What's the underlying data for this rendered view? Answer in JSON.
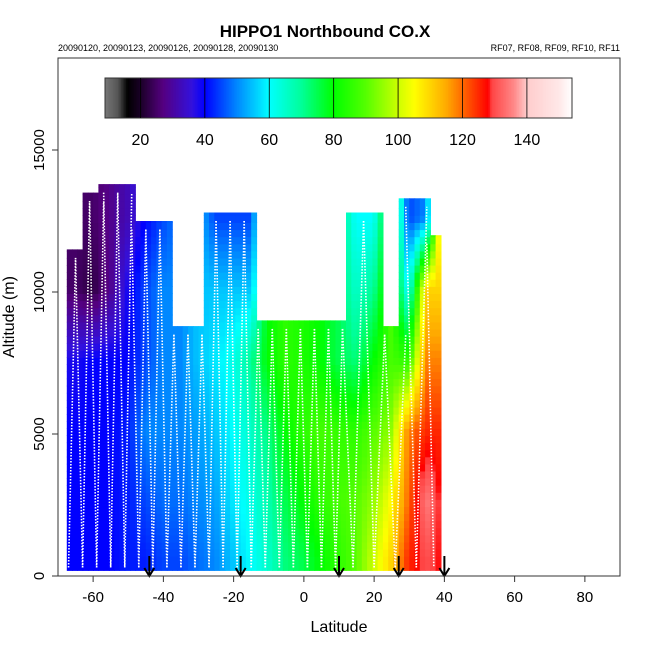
{
  "chart_data": {
    "type": "heatmap",
    "title": "HIPPO1 Northbound CO.X",
    "subtitle_left": "20090120, 20090123, 20090126, 20090128, 20090130",
    "subtitle_right": "RF07, RF08, RF09, RF10, RF11",
    "xlabel": "Latitude",
    "ylabel": "Altitude (m)",
    "xlim": [
      -70,
      90
    ],
    "ylim": [
      0,
      18240
    ],
    "xticks": [
      "-60",
      "-40",
      "-20",
      "0",
      "20",
      "40",
      "60",
      "80"
    ],
    "xtick_values": [
      -60,
      -40,
      -20,
      0,
      20,
      40,
      60,
      80
    ],
    "yticks": [
      "0",
      "5000",
      "10000",
      "15000"
    ],
    "ytick_values": [
      0,
      5000,
      10000,
      15000
    ],
    "colorbar": {
      "range": [
        9,
        154
      ],
      "ticks": [
        "20",
        "40",
        "60",
        "80",
        "100",
        "120",
        "140"
      ],
      "tick_values": [
        20,
        40,
        60,
        80,
        100,
        120,
        140
      ],
      "stops": [
        [
          9,
          "#777777"
        ],
        [
          13,
          "#555555"
        ],
        [
          16,
          "#000000"
        ],
        [
          20,
          "#1a0026"
        ],
        [
          27,
          "#550080"
        ],
        [
          36,
          "#3311dd"
        ],
        [
          40,
          "#0000ff"
        ],
        [
          50,
          "#0088ff"
        ],
        [
          60,
          "#00ffff"
        ],
        [
          70,
          "#00ff99"
        ],
        [
          80,
          "#00ff00"
        ],
        [
          90,
          "#55ff00"
        ],
        [
          100,
          "#ccff00"
        ],
        [
          105,
          "#ffff00"
        ],
        [
          115,
          "#ffaa00"
        ],
        [
          128,
          "#ff0000"
        ],
        [
          129,
          "#ff4444"
        ],
        [
          136,
          "#ff8888"
        ],
        [
          140,
          "#ffcccc"
        ],
        [
          150,
          "#ffe8e8"
        ],
        [
          154,
          "#ffffff"
        ]
      ]
    },
    "levels": [
      500,
      2500,
      5000,
      7500,
      10000,
      12500
    ],
    "columns": [
      {
        "lat": -66,
        "top": 11500,
        "values": [
          40,
          40,
          40,
          38,
          25,
          null
        ]
      },
      {
        "lat": -61,
        "top": 13500,
        "values": [
          40,
          40,
          40,
          40,
          22,
          25
        ]
      },
      {
        "lat": -56,
        "top": 13800,
        "values": [
          40,
          40,
          40,
          40,
          28,
          28
        ]
      },
      {
        "lat": -51,
        "top": 13800,
        "values": [
          42,
          42,
          42,
          40,
          38,
          32
        ]
      },
      {
        "lat": -46,
        "top": 12500,
        "values": [
          42,
          45,
          50,
          45,
          45,
          40
        ]
      },
      {
        "lat": -41,
        "top": 12500,
        "values": [
          45,
          48,
          50,
          50,
          50,
          45
        ]
      },
      {
        "lat": -36,
        "top": 8800,
        "values": [
          45,
          48,
          50,
          50,
          null,
          null
        ]
      },
      {
        "lat": -31,
        "top": 8800,
        "values": [
          48,
          50,
          52,
          55,
          null,
          null
        ]
      },
      {
        "lat": -26,
        "top": 12800,
        "values": [
          50,
          52,
          55,
          58,
          55,
          45
        ]
      },
      {
        "lat": -21,
        "top": 12800,
        "values": [
          55,
          58,
          60,
          62,
          55,
          45
        ]
      },
      {
        "lat": -16,
        "top": 12800,
        "values": [
          60,
          62,
          65,
          70,
          55,
          45
        ]
      },
      {
        "lat": -11,
        "top": 9000,
        "values": [
          65,
          68,
          72,
          80,
          null,
          null
        ]
      },
      {
        "lat": -6,
        "top": 9000,
        "values": [
          72,
          75,
          80,
          85,
          null,
          null
        ]
      },
      {
        "lat": -1,
        "top": 9000,
        "values": [
          75,
          80,
          85,
          83,
          null,
          null
        ]
      },
      {
        "lat": 4,
        "top": 9000,
        "values": [
          80,
          85,
          88,
          80,
          null,
          null
        ]
      },
      {
        "lat": 9,
        "top": 9000,
        "values": [
          85,
          88,
          86,
          75,
          null,
          null
        ]
      },
      {
        "lat": 14,
        "top": 12800,
        "values": [
          90,
          90,
          85,
          72,
          65,
          60
        ]
      },
      {
        "lat": 19,
        "top": 12800,
        "values": [
          100,
          95,
          90,
          80,
          70,
          60
        ]
      },
      {
        "lat": 24,
        "top": 8800,
        "values": [
          110,
          105,
          95,
          88,
          null,
          null
        ]
      },
      {
        "lat": 29,
        "top": 13300,
        "values": [
          125,
          120,
          118,
          85,
          60,
          45
        ]
      },
      {
        "lat": 34,
        "top": 13300,
        "values": [
          130,
          135,
          125,
          118,
          110,
          50
        ]
      },
      {
        "lat": 38,
        "top": 12000,
        "values": [
          128,
          128,
          125,
          118,
          110,
          null
        ]
      }
    ],
    "profile_lats": [
      -67,
      -65,
      -63,
      -61,
      -59,
      -57,
      -55,
      -53,
      -51,
      -49,
      -47,
      -45,
      -43,
      -41,
      -39,
      -37,
      -35,
      -33,
      -31,
      -29,
      -27,
      -25,
      -23,
      -21,
      -19,
      -17,
      -15,
      -13,
      -11,
      -9,
      -7,
      -5,
      -3,
      -1,
      1,
      3,
      5,
      7,
      9,
      11,
      14,
      17,
      20,
      23,
      26,
      29,
      32,
      35,
      37
    ],
    "flight_markers": [
      -44,
      -18,
      10,
      27,
      40
    ]
  }
}
